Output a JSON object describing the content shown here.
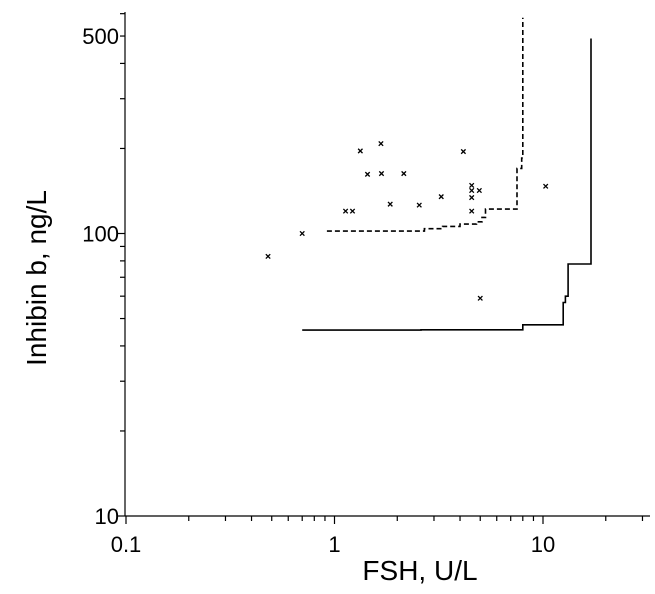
{
  "chart_data": {
    "type": "scatter",
    "xlabel": "FSH, U/L",
    "ylabel": "Inhibin b, ng/L",
    "x_scale": "log",
    "y_scale": "log",
    "xlim": [
      0.1,
      35
    ],
    "ylim": [
      10,
      600
    ],
    "x_ticks": [
      {
        "value": 0.1,
        "label": "0.1"
      },
      {
        "value": 1,
        "label": "1"
      },
      {
        "value": 10,
        "label": "10"
      }
    ],
    "y_ticks": [
      {
        "value": 10,
        "label": "10"
      },
      {
        "value": 100,
        "label": "100"
      },
      {
        "value": 500,
        "label": "500"
      }
    ],
    "grid": false,
    "legend": "none",
    "points": [
      {
        "x": 0.48,
        "y": 83
      },
      {
        "x": 0.7,
        "y": 100
      },
      {
        "x": 1.13,
        "y": 120
      },
      {
        "x": 1.22,
        "y": 120
      },
      {
        "x": 1.33,
        "y": 196
      },
      {
        "x": 1.44,
        "y": 162
      },
      {
        "x": 1.67,
        "y": 208
      },
      {
        "x": 1.68,
        "y": 163
      },
      {
        "x": 1.85,
        "y": 127
      },
      {
        "x": 2.15,
        "y": 163
      },
      {
        "x": 2.55,
        "y": 126
      },
      {
        "x": 3.25,
        "y": 135
      },
      {
        "x": 4.15,
        "y": 195
      },
      {
        "x": 4.55,
        "y": 148
      },
      {
        "x": 4.55,
        "y": 142
      },
      {
        "x": 4.55,
        "y": 134
      },
      {
        "x": 4.55,
        "y": 120
      },
      {
        "x": 4.95,
        "y": 142
      },
      {
        "x": 5.0,
        "y": 59
      },
      {
        "x": 10.3,
        "y": 147
      }
    ],
    "series": [
      {
        "style": "solid",
        "points": [
          [
            0.7,
            45.5
          ],
          [
            2.6,
            45.5
          ],
          [
            2.6,
            45.6
          ],
          [
            8.0,
            45.6
          ],
          [
            8.0,
            47.5
          ],
          [
            12.5,
            47.5
          ],
          [
            12.5,
            57
          ],
          [
            12.8,
            57
          ],
          [
            12.8,
            60
          ],
          [
            13.2,
            60
          ],
          [
            13.2,
            78
          ],
          [
            17.0,
            78
          ],
          [
            17.0,
            490
          ]
        ]
      },
      {
        "style": "dashed",
        "points": [
          [
            0.92,
            102
          ],
          [
            2.7,
            102
          ],
          [
            2.7,
            104
          ],
          [
            3.3,
            104
          ],
          [
            3.3,
            106
          ],
          [
            4.0,
            106
          ],
          [
            4.0,
            108
          ],
          [
            4.8,
            108
          ],
          [
            4.8,
            110
          ],
          [
            5.1,
            110
          ],
          [
            5.1,
            114
          ],
          [
            5.3,
            114
          ],
          [
            5.3,
            122
          ],
          [
            7.5,
            122
          ],
          [
            7.5,
            170
          ],
          [
            7.9,
            170
          ],
          [
            7.9,
            185
          ],
          [
            8.0,
            185
          ],
          [
            8.0,
            580
          ]
        ]
      }
    ]
  }
}
